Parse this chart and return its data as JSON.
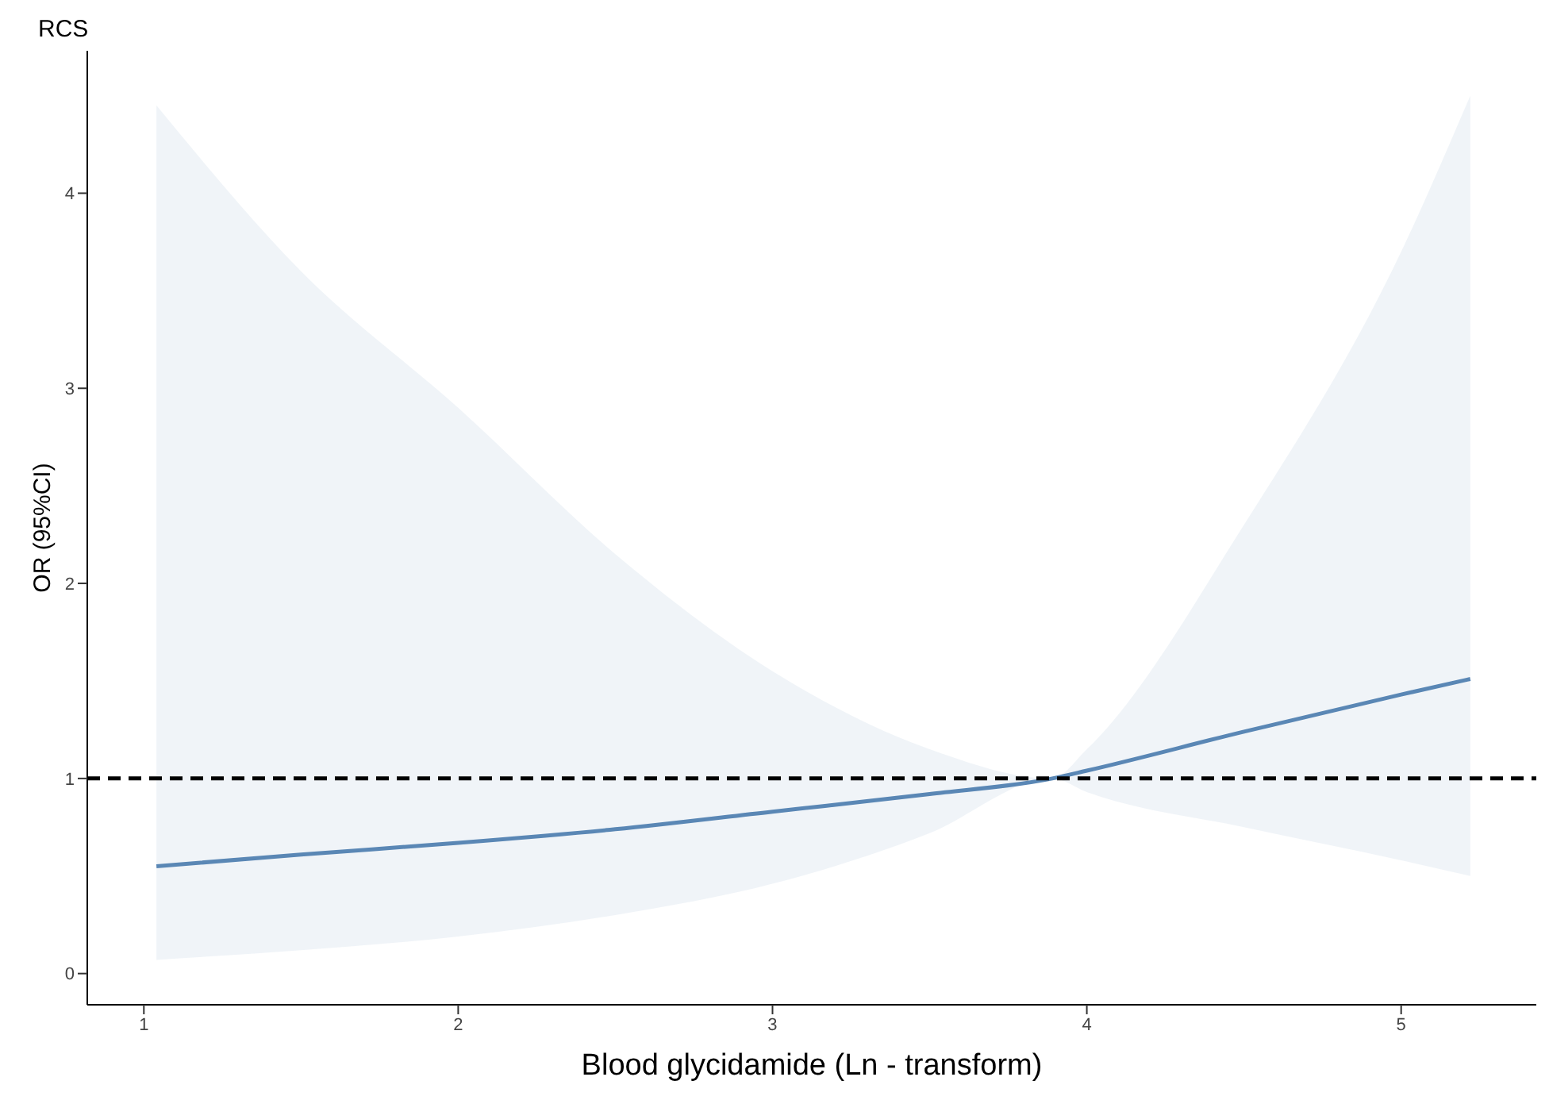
{
  "chart_data": {
    "type": "line",
    "title": "RCS",
    "xlabel": "Blood glycidamide (Ln - transform)",
    "ylabel": "OR (95%CI)",
    "x": [
      1.04,
      1.5,
      2,
      2.5,
      3,
      3.5,
      3.89,
      4,
      4.5,
      5,
      5.22
    ],
    "series": [
      {
        "color": "#5a87b5",
        "values": [
          0.55,
          0.61,
          0.67,
          0.74,
          0.83,
          0.92,
          1.0,
          1.04,
          1.24,
          1.43,
          1.51
        ],
        "lower": [
          0.07,
          0.12,
          0.19,
          0.3,
          0.46,
          0.72,
          1.0,
          0.93,
          0.75,
          0.58,
          0.5
        ],
        "upper": [
          4.45,
          3.6,
          2.9,
          2.15,
          1.55,
          1.15,
          1.0,
          1.15,
          2.3,
          3.7,
          4.5
        ]
      }
    ],
    "xlim": [
      0.82,
      5.43
    ],
    "xticks": [
      1,
      2,
      3,
      4,
      5
    ],
    "ylim": [
      -0.16,
      4.73
    ],
    "yticks": [
      0,
      1,
      2,
      3,
      4
    ],
    "ref_lines": [
      {
        "axis": "y",
        "value": 1,
        "color": "#000000",
        "line_style": "dashed"
      }
    ],
    "legend": false,
    "marker": "none",
    "line_style": "solid"
  }
}
